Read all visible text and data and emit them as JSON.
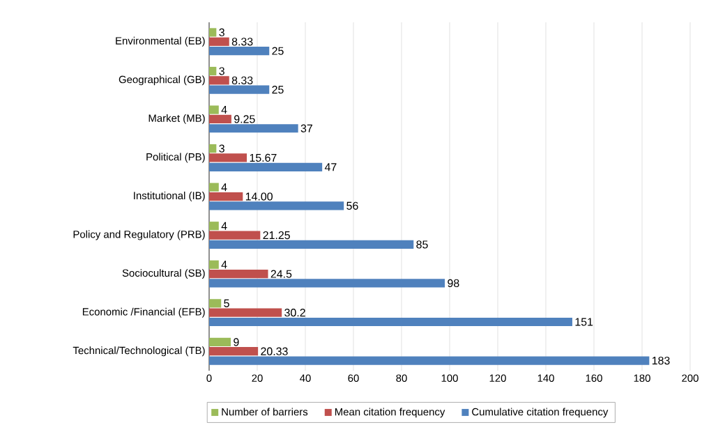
{
  "chart_data": {
    "type": "bar",
    "orientation": "horizontal",
    "categories": [
      "Environmental (EB)",
      "Geographical (GB)",
      "Market (MB)",
      "Political (PB)",
      "Institutional (IB)",
      "Policy and Regulatory (PRB)",
      "Sociocultural (SB)",
      "Economic /Financial (EFB)",
      "Technical/Technological (TB)"
    ],
    "series": [
      {
        "name": "Number of barriers",
        "color": "#9bbb59",
        "values": [
          3,
          3,
          4,
          3,
          4,
          4,
          4,
          5,
          9
        ],
        "value_labels": [
          "3",
          "3",
          "4",
          "3",
          "4",
          "4",
          "4",
          "5",
          "9"
        ]
      },
      {
        "name": "Mean citation frequency",
        "color": "#c0504d",
        "values": [
          8.33,
          8.33,
          9.25,
          15.67,
          14.0,
          21.25,
          24.5,
          30.2,
          20.33
        ],
        "value_labels": [
          "8.33",
          "8.33",
          "9.25",
          "15.67",
          "14.00",
          "21.25",
          "24.5",
          "30.2",
          "20.33"
        ]
      },
      {
        "name": "Cumulative citation frequency",
        "color": "#4f81bd",
        "values": [
          25,
          25,
          37,
          47,
          56,
          85,
          98,
          151,
          183
        ],
        "value_labels": [
          "25",
          "25",
          "37",
          "47",
          "56",
          "85",
          "98",
          "151",
          "183"
        ]
      }
    ],
    "xlim": [
      0,
      200
    ],
    "xticks": [
      0,
      20,
      40,
      60,
      80,
      100,
      120,
      140,
      160,
      180,
      200
    ],
    "grid": "x",
    "legend": "bottom"
  }
}
